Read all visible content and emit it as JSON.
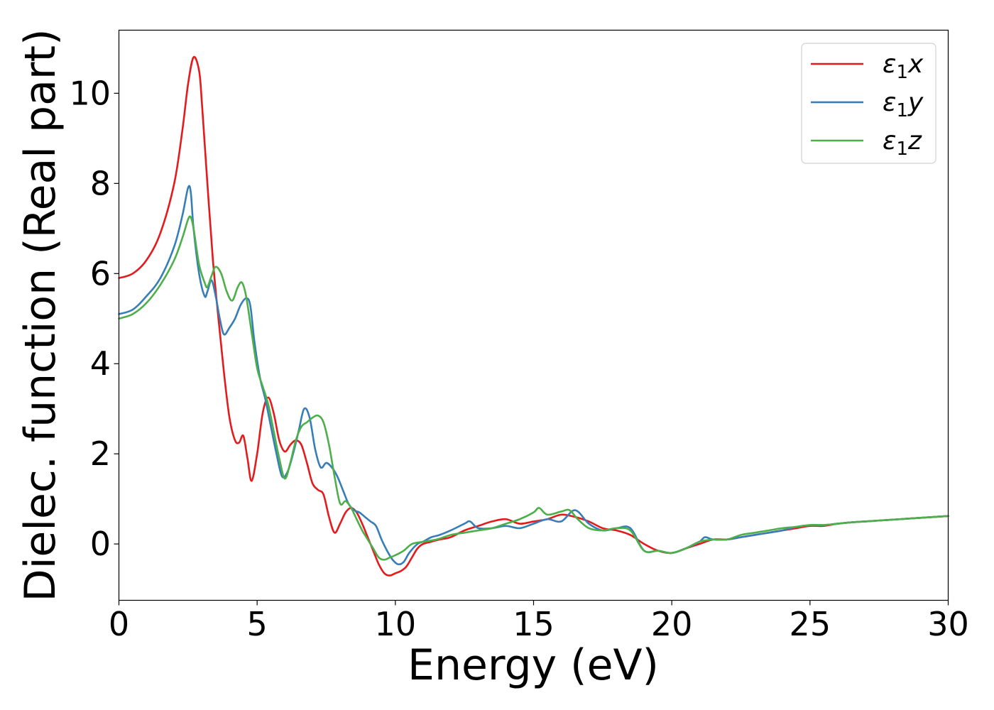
{
  "chart_data": {
    "type": "line",
    "title": "",
    "xlabel": "Energy (eV)",
    "ylabel": "Dielec. function (Real part)",
    "xlim": [
      0,
      30
    ],
    "ylim": [
      -1.25,
      11.4
    ],
    "xticks": [
      0,
      5,
      10,
      15,
      20,
      25,
      30
    ],
    "xtick_labels": [
      "0",
      "5",
      "10",
      "15",
      "20",
      "25",
      "30"
    ],
    "yticks": [
      0,
      2,
      4,
      6,
      8,
      10
    ],
    "ytick_labels": [
      "0",
      "2",
      "4",
      "6",
      "8",
      "10"
    ],
    "grid": false,
    "legend": {
      "placement": "top-right",
      "entries": [
        {
          "base": "ε",
          "sub": "1",
          "suffix": "x",
          "color": "#e41a1c"
        },
        {
          "base": "ε",
          "sub": "1",
          "suffix": "y",
          "color": "#377eb8"
        },
        {
          "base": "ε",
          "sub": "1",
          "suffix": "z",
          "color": "#4daf4a"
        }
      ]
    },
    "series": [
      {
        "name": "ε1x",
        "color": "#e41a1c",
        "x": [
          0,
          0.5,
          1.0,
          1.5,
          2.0,
          2.3,
          2.5,
          2.7,
          2.9,
          3.0,
          3.2,
          3.4,
          3.6,
          3.8,
          4.0,
          4.2,
          4.35,
          4.5,
          4.65,
          4.8,
          5.0,
          5.2,
          5.4,
          5.6,
          5.8,
          6.0,
          6.2,
          6.4,
          6.6,
          6.8,
          7.0,
          7.2,
          7.4,
          7.6,
          7.8,
          8.0,
          8.2,
          8.4,
          8.6,
          8.8,
          9.0,
          9.2,
          9.4,
          9.6,
          9.8,
          10.0,
          10.2,
          10.4,
          10.6,
          10.8,
          11.0,
          11.3,
          11.6,
          12.0,
          12.5,
          13.0,
          13.5,
          14.0,
          14.5,
          15.0,
          15.5,
          16.0,
          16.5,
          17.0,
          17.5,
          18.0,
          18.5,
          19.0,
          19.5,
          20.0,
          20.5,
          21.0,
          21.5,
          22.0,
          22.5,
          23.0,
          23.5,
          24.0,
          24.5,
          25.0,
          25.5,
          26.0,
          26.5,
          27.0,
          27.5,
          28.0,
          28.5,
          29.0,
          29.5,
          30.0
        ],
        "y": [
          5.9,
          6.0,
          6.3,
          6.9,
          8.0,
          9.2,
          10.2,
          10.8,
          10.5,
          9.8,
          8.0,
          6.3,
          5.0,
          3.8,
          2.8,
          2.3,
          2.25,
          2.4,
          1.9,
          1.4,
          2.0,
          2.9,
          3.25,
          2.9,
          2.3,
          2.05,
          2.2,
          2.3,
          2.2,
          1.8,
          1.35,
          1.2,
          1.1,
          0.6,
          0.25,
          0.45,
          0.7,
          0.8,
          0.7,
          0.45,
          0.15,
          -0.15,
          -0.45,
          -0.65,
          -0.7,
          -0.65,
          -0.6,
          -0.5,
          -0.3,
          -0.1,
          0.0,
          0.05,
          0.1,
          0.15,
          0.3,
          0.4,
          0.5,
          0.55,
          0.45,
          0.5,
          0.55,
          0.65,
          0.6,
          0.5,
          0.35,
          0.3,
          0.2,
          0.0,
          -0.15,
          -0.2,
          -0.1,
          0.0,
          0.1,
          0.1,
          0.15,
          0.2,
          0.25,
          0.3,
          0.35,
          0.4,
          0.4,
          0.45,
          0.48,
          0.5,
          0.52,
          0.54,
          0.56,
          0.58,
          0.6,
          0.62
        ]
      },
      {
        "name": "ε1y",
        "color": "#377eb8",
        "x": [
          0,
          0.5,
          1.0,
          1.5,
          2.0,
          2.3,
          2.5,
          2.6,
          2.7,
          2.9,
          3.1,
          3.2,
          3.35,
          3.5,
          3.65,
          3.8,
          4.0,
          4.2,
          4.4,
          4.6,
          4.75,
          4.9,
          5.1,
          5.3,
          5.5,
          5.7,
          5.9,
          6.1,
          6.3,
          6.5,
          6.7,
          6.9,
          7.1,
          7.3,
          7.5,
          7.7,
          7.9,
          8.1,
          8.3,
          8.5,
          8.7,
          8.9,
          9.1,
          9.3,
          9.5,
          9.7,
          9.9,
          10.1,
          10.3,
          10.5,
          10.8,
          11.0,
          11.3,
          11.6,
          12.0,
          12.5,
          12.7,
          13.0,
          13.5,
          14.0,
          14.5,
          15.0,
          15.5,
          16.0,
          16.5,
          17.0,
          17.5,
          18.0,
          18.5,
          19.0,
          19.5,
          20.0,
          20.5,
          21.0,
          21.2,
          21.5,
          22.0,
          22.5,
          23.0,
          23.5,
          24.0,
          24.5,
          25.0,
          25.5,
          26.0,
          26.5,
          27.0,
          27.5,
          28.0,
          28.5,
          29.0,
          29.5,
          30.0
        ],
        "y": [
          5.1,
          5.2,
          5.5,
          5.9,
          6.6,
          7.3,
          7.9,
          7.8,
          7.0,
          6.0,
          5.5,
          5.6,
          5.85,
          5.5,
          5.0,
          4.65,
          4.8,
          5.0,
          5.3,
          5.45,
          5.3,
          4.5,
          3.7,
          3.2,
          2.6,
          2.0,
          1.5,
          1.6,
          2.0,
          2.5,
          3.0,
          2.8,
          2.1,
          1.7,
          1.8,
          1.7,
          1.5,
          1.2,
          0.9,
          0.75,
          0.7,
          0.6,
          0.5,
          0.4,
          0.1,
          -0.15,
          -0.35,
          -0.45,
          -0.4,
          -0.2,
          0.0,
          0.05,
          0.15,
          0.2,
          0.3,
          0.45,
          0.5,
          0.35,
          0.35,
          0.4,
          0.35,
          0.45,
          0.55,
          0.5,
          0.75,
          0.45,
          0.3,
          0.35,
          0.35,
          -0.15,
          -0.15,
          -0.2,
          -0.1,
          0.05,
          0.15,
          0.1,
          0.1,
          0.15,
          0.2,
          0.25,
          0.3,
          0.38,
          0.42,
          0.42,
          0.45,
          0.48,
          0.5,
          0.52,
          0.54,
          0.56,
          0.58,
          0.6,
          0.62
        ]
      },
      {
        "name": "ε1z",
        "color": "#4daf4a",
        "x": [
          0,
          0.5,
          1.0,
          1.5,
          2.0,
          2.3,
          2.5,
          2.6,
          2.7,
          2.9,
          3.1,
          3.2,
          3.35,
          3.5,
          3.7,
          3.9,
          4.1,
          4.3,
          4.45,
          4.6,
          4.8,
          5.0,
          5.2,
          5.4,
          5.6,
          5.8,
          6.0,
          6.2,
          6.4,
          6.6,
          6.8,
          7.0,
          7.2,
          7.4,
          7.6,
          7.8,
          8.0,
          8.2,
          8.4,
          8.6,
          8.8,
          9.0,
          9.2,
          9.4,
          9.6,
          9.8,
          10.0,
          10.3,
          10.6,
          11.0,
          11.5,
          12.0,
          12.5,
          13.0,
          13.5,
          14.0,
          14.5,
          15.0,
          15.2,
          15.5,
          16.0,
          16.3,
          16.6,
          17.0,
          17.5,
          18.0,
          18.5,
          19.0,
          19.5,
          20.0,
          20.5,
          21.0,
          21.5,
          22.0,
          22.5,
          23.0,
          23.5,
          24.0,
          24.5,
          25.0,
          25.5,
          26.0,
          26.5,
          27.0,
          27.5,
          28.0,
          28.5,
          29.0,
          29.5,
          30.0
        ],
        "y": [
          5.0,
          5.1,
          5.35,
          5.75,
          6.3,
          6.8,
          7.2,
          7.25,
          7.0,
          6.2,
          5.8,
          5.7,
          5.95,
          6.15,
          6.0,
          5.6,
          5.4,
          5.7,
          5.8,
          5.5,
          4.7,
          3.9,
          3.5,
          3.1,
          2.5,
          1.9,
          1.45,
          1.8,
          2.3,
          2.6,
          2.7,
          2.8,
          2.85,
          2.7,
          2.2,
          1.5,
          0.9,
          0.95,
          0.8,
          0.55,
          0.3,
          0.1,
          -0.1,
          -0.3,
          -0.35,
          -0.3,
          -0.25,
          -0.15,
          0.0,
          0.05,
          0.1,
          0.2,
          0.25,
          0.3,
          0.35,
          0.45,
          0.55,
          0.7,
          0.8,
          0.65,
          0.72,
          0.75,
          0.55,
          0.35,
          0.3,
          0.35,
          0.3,
          -0.15,
          -0.15,
          -0.2,
          -0.1,
          0.05,
          0.1,
          0.1,
          0.2,
          0.25,
          0.3,
          0.35,
          0.38,
          0.42,
          0.42,
          0.45,
          0.48,
          0.5,
          0.52,
          0.54,
          0.56,
          0.58,
          0.6,
          0.62
        ]
      }
    ]
  }
}
